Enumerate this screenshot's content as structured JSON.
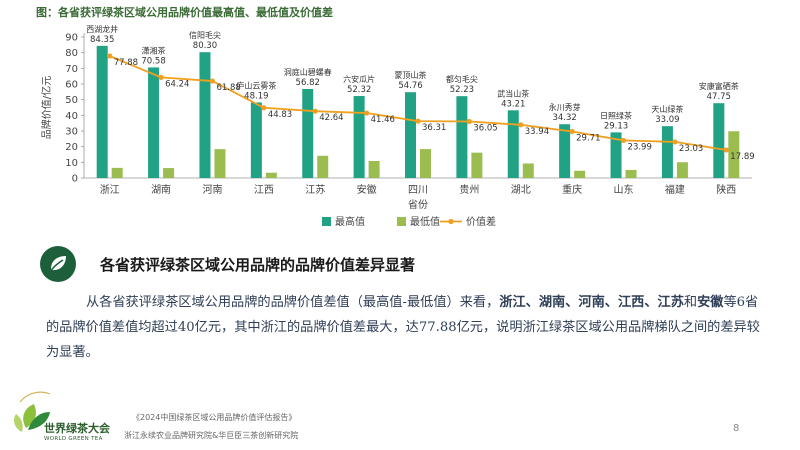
{
  "figure_title": "图：各省获评绿茶区域公用品牌价值最高值、最低值及价值差",
  "chart_data": {
    "type": "bar",
    "categories": [
      "浙江",
      "湖南",
      "河南",
      "江西",
      "江苏",
      "安徽",
      "四川",
      "贵州",
      "湖北",
      "重庆",
      "山东",
      "福建",
      "陕西"
    ],
    "series": [
      {
        "name": "最高值",
        "type": "bar",
        "color": "#21a284",
        "values": [
          84.35,
          70.58,
          80.3,
          48.19,
          56.82,
          52.32,
          54.76,
          52.23,
          43.21,
          34.32,
          29.13,
          33.09,
          47.75
        ]
      },
      {
        "name": "最低值",
        "type": "bar",
        "color": "#9bbd4f",
        "values": [
          6.47,
          6.34,
          18.42,
          3.36,
          14.18,
          10.86,
          18.45,
          16.18,
          9.27,
          4.61,
          5.14,
          10.06,
          29.86
        ]
      },
      {
        "name": "价值差",
        "type": "line",
        "color": "#f0a020",
        "values": [
          77.88,
          64.24,
          61.88,
          44.83,
          42.64,
          41.46,
          36.31,
          36.05,
          33.94,
          29.71,
          23.99,
          23.03,
          17.89
        ]
      }
    ],
    "bar_labels": [
      "西湖龙井",
      "潇湘茶",
      "信阳毛尖",
      "庐山云雾茶",
      "洞庭山碧螺春",
      "六安瓜片",
      "蒙顶山茶",
      "都匀毛尖",
      "武当山茶",
      "永川秀芽",
      "日照绿茶",
      "天山绿茶",
      "安康富硒茶"
    ],
    "ylabel": "品牌价值/亿元",
    "xlabel": "省份",
    "ylim": [
      0,
      90
    ],
    "yticks": [
      0,
      10,
      20,
      30,
      40,
      50,
      60,
      70,
      80,
      90
    ],
    "legend_position": "bottom",
    "grid": false
  },
  "section": {
    "title": "各省获评绿茶区域公用品牌的品牌价值差异显著",
    "para_1": "从各省获评绿茶区域公用品牌的品牌价值差值（最高值-最低值）来看，",
    "bold_provinces": "浙江、湖南、河南、江西、江苏",
    "para_and": "和",
    "bold_anhui": "安徽",
    "para_2": "等6省的品牌价值差值均超过40亿元，其中浙江的品牌价值差最大，达77.88亿元，说明浙江绿茶区域公用品牌梯队之间的差异较为显著。"
  },
  "logo": {
    "cn": "世界绿茶大会",
    "en": "WORLD GREEN TEA",
    "arc_text": "WORLD GREEN TEA CONFERENCE"
  },
  "footer": {
    "source": "《2024中国绿茶区域公用品牌价值评估报告》",
    "org": "浙江永续农业品牌研究院&华巨臣三茶创新研究院",
    "page": "8"
  },
  "colors": {
    "max_bar": "#21a284",
    "min_bar": "#9bbd4f",
    "diff_line": "#f0a020",
    "badge": "#1d5f3b"
  }
}
